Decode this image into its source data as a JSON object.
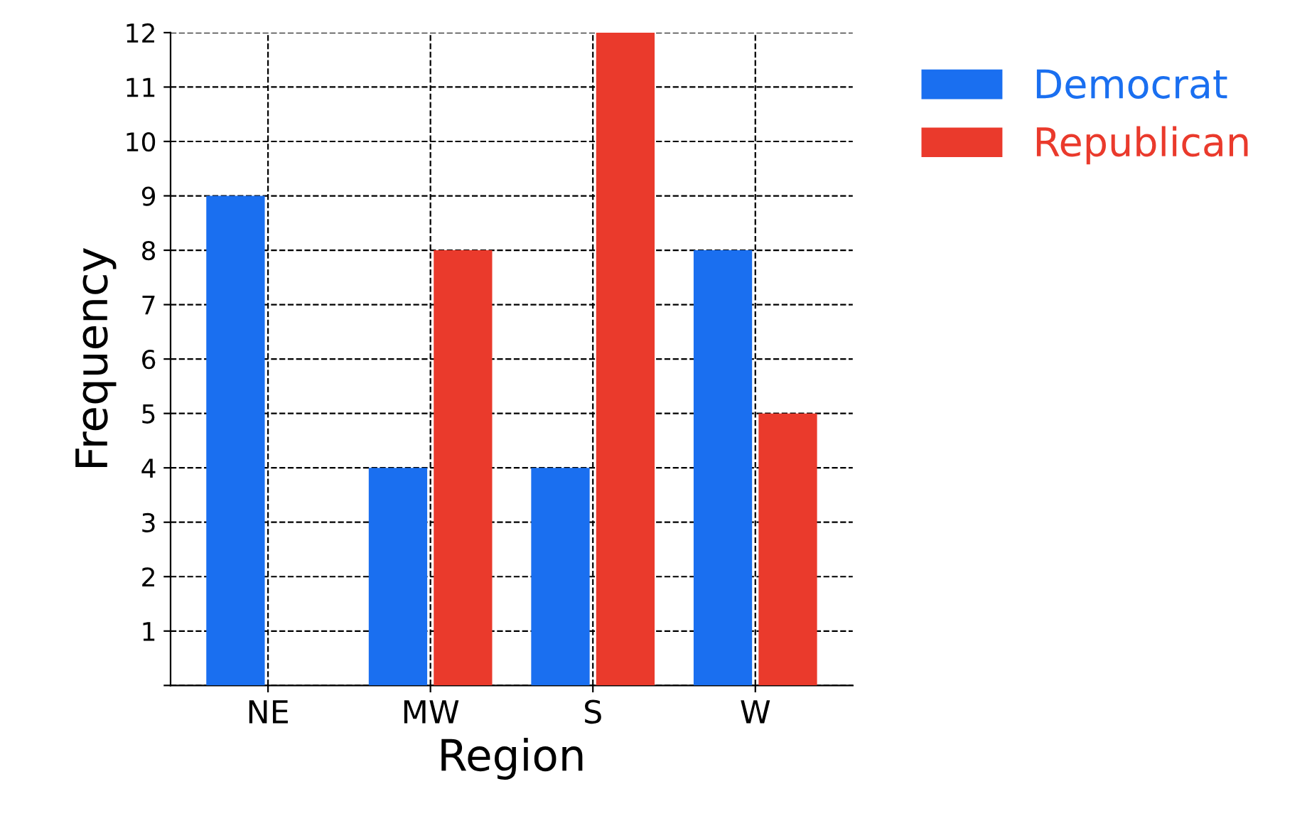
{
  "chart_data": {
    "type": "bar",
    "xlabel": "Region",
    "ylabel": "Frequency",
    "categories": [
      "NE",
      "MW",
      "S",
      "W"
    ],
    "series": [
      {
        "name": "Democrat",
        "color": "#1a6ff0",
        "values": [
          9,
          4,
          4,
          8
        ]
      },
      {
        "name": "Republican",
        "color": "#ea3a2c",
        "values": [
          0,
          8,
          12,
          5
        ]
      }
    ],
    "ylim": [
      0,
      12
    ],
    "yticks": [
      {
        "value": 0,
        "label": null
      },
      1,
      2,
      3,
      4,
      5,
      6,
      7,
      8,
      9,
      10,
      11,
      12
    ],
    "grid": true,
    "legend": "top right"
  }
}
